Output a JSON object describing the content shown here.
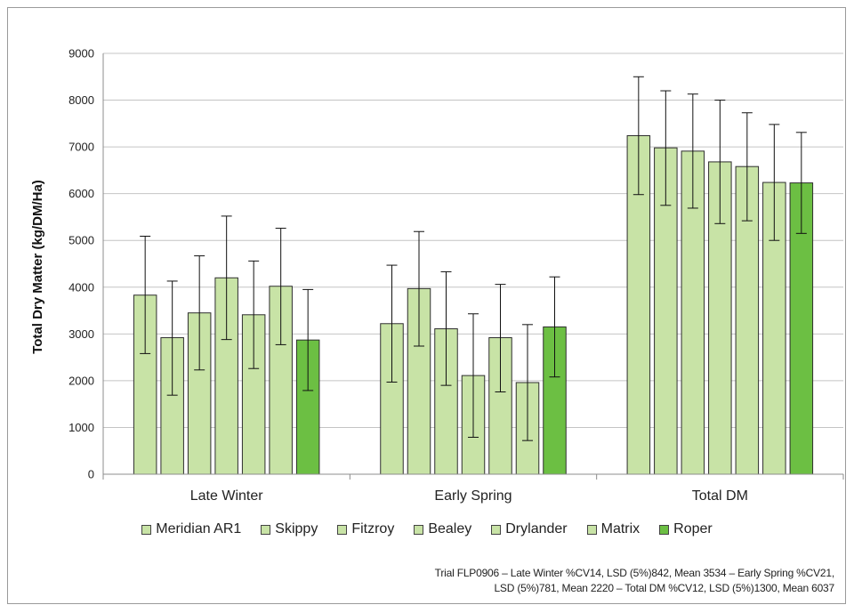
{
  "chart_data": {
    "type": "bar",
    "title": "",
    "xlabel": "",
    "ylabel": "Total Dry Matter (kg/DM/Ha)",
    "ylim": [
      0,
      9000
    ],
    "yticks": [
      "0",
      "1000",
      "2000",
      "3000",
      "4000",
      "5000",
      "6000",
      "7000",
      "8000",
      "9000"
    ],
    "grid": true,
    "legend_position": "bottom",
    "categories": [
      "Late Winter",
      "Early Spring",
      "Total DM"
    ],
    "series": [
      {
        "name": "Meridian AR1",
        "color": "#c8e3a6",
        "values": [
          3830,
          3220,
          7240
        ],
        "err_low": [
          2580,
          1970,
          5980
        ],
        "err_high": [
          5090,
          4470,
          8500
        ]
      },
      {
        "name": "Skippy",
        "color": "#c8e3a6",
        "values": [
          2920,
          3970,
          6980
        ],
        "err_low": [
          1690,
          2740,
          5750
        ],
        "err_high": [
          4130,
          5190,
          8200
        ]
      },
      {
        "name": "Fitzroy",
        "color": "#c8e3a6",
        "values": [
          3450,
          3110,
          6910
        ],
        "err_low": [
          2230,
          1900,
          5690
        ],
        "err_high": [
          4670,
          4330,
          8130
        ]
      },
      {
        "name": "Bealey",
        "color": "#c8e3a6",
        "values": [
          4200,
          2110,
          6680
        ],
        "err_low": [
          2880,
          790,
          5360
        ],
        "err_high": [
          5520,
          3430,
          8000
        ]
      },
      {
        "name": "Drylander",
        "color": "#c8e3a6",
        "values": [
          3410,
          2920,
          6580
        ],
        "err_low": [
          2260,
          1760,
          5420
        ],
        "err_high": [
          4560,
          4060,
          7730
        ]
      },
      {
        "name": "Matrix",
        "color": "#c8e3a6",
        "values": [
          4020,
          1960,
          6240
        ],
        "err_low": [
          2770,
          720,
          5000
        ],
        "err_high": [
          5260,
          3200,
          7480
        ]
      },
      {
        "name": "Roper",
        "color": "#6cbf43",
        "values": [
          2870,
          3150,
          6230
        ],
        "err_low": [
          1790,
          2080,
          5150
        ],
        "err_high": [
          3950,
          4220,
          7310
        ]
      }
    ]
  },
  "note": {
    "line1": "Trial FLP0906 – Late Winter %CV14, LSD (5%)842, Mean 3534 – Early Spring %CV21,",
    "line2": "LSD (5%)781, Mean 2220 – Total DM %CV12, LSD (5%)1300, Mean 6037"
  }
}
